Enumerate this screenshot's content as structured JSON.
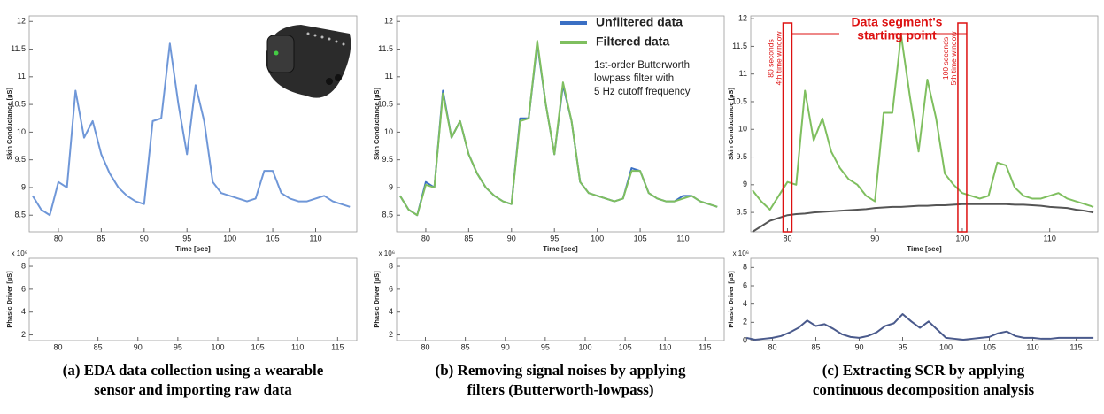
{
  "chart_data": [
    {
      "type": "line",
      "xlabel": "Time [sec]",
      "ylabel": "Skin Conductance [µS]",
      "x": [
        77,
        78,
        79,
        80,
        81,
        82,
        83,
        84,
        85,
        86,
        87,
        88,
        89,
        90,
        91,
        92,
        93,
        94,
        95,
        96,
        97,
        98,
        99,
        100,
        101,
        102,
        103,
        104,
        105,
        106,
        107,
        108,
        109,
        110,
        111,
        112,
        113,
        114
      ],
      "series": [
        {
          "color": "#6f97d8",
          "values": [
            8.85,
            8.6,
            8.5,
            9.1,
            9.0,
            10.75,
            9.9,
            10.2,
            9.6,
            9.25,
            9.0,
            8.85,
            8.75,
            8.7,
            10.2,
            10.25,
            11.6,
            10.5,
            9.6,
            10.85,
            10.2,
            9.1,
            8.9,
            8.85,
            8.8,
            8.75,
            8.8,
            9.3,
            9.3,
            8.9,
            8.8,
            8.75,
            8.75,
            8.8,
            8.85,
            8.75,
            8.7,
            8.65
          ]
        }
      ],
      "xlim": [
        76.6,
        114.8
      ],
      "ylim": [
        8.2,
        12.1
      ],
      "xticks": [
        80,
        85,
        90,
        95,
        100,
        105,
        110
      ],
      "yticks": [
        8.5,
        9,
        9.5,
        10,
        10.5,
        11,
        11.5,
        12
      ]
    },
    {
      "type": "line",
      "ylabel": "Phasic Driver [µS]",
      "y_multiplier": "x 10⁶",
      "x": [],
      "series": [],
      "xlim": [
        76.4,
        117.4
      ],
      "ylim": [
        1.5,
        8.7
      ],
      "xticks": [
        80,
        85,
        90,
        95,
        100,
        105,
        110,
        115
      ],
      "yticks": [
        2,
        4,
        6,
        8
      ]
    },
    {
      "type": "line",
      "xlabel": "Time [sec]",
      "ylabel": "Skin Conductance [µS]",
      "legend": "upper right",
      "note": [
        "1st-order Butterworth",
        "lowpass filter with",
        "5 Hz cutoff frequency"
      ],
      "x": [
        77,
        78,
        79,
        80,
        81,
        82,
        83,
        84,
        85,
        86,
        87,
        88,
        89,
        90,
        91,
        92,
        93,
        94,
        95,
        96,
        97,
        98,
        99,
        100,
        101,
        102,
        103,
        104,
        105,
        106,
        107,
        108,
        109,
        110,
        111,
        112,
        113,
        114
      ],
      "series": [
        {
          "name": "Unfiltered data",
          "color": "#3a6fc4",
          "values": [
            8.85,
            8.6,
            8.5,
            9.1,
            9.0,
            10.75,
            9.9,
            10.2,
            9.6,
            9.25,
            9.0,
            8.85,
            8.75,
            8.7,
            10.25,
            10.25,
            11.6,
            10.5,
            9.6,
            10.85,
            10.2,
            9.1,
            8.9,
            8.85,
            8.8,
            8.75,
            8.8,
            9.35,
            9.3,
            8.9,
            8.8,
            8.75,
            8.75,
            8.85,
            8.85,
            8.75,
            8.7,
            8.65
          ]
        },
        {
          "name": "Filtered data",
          "color": "#7fbf5f",
          "values": [
            8.85,
            8.6,
            8.5,
            9.05,
            9.0,
            10.7,
            9.9,
            10.2,
            9.6,
            9.25,
            9.0,
            8.85,
            8.75,
            8.7,
            10.2,
            10.25,
            11.65,
            10.5,
            9.6,
            10.9,
            10.2,
            9.1,
            8.9,
            8.85,
            8.8,
            8.75,
            8.8,
            9.3,
            9.3,
            8.9,
            8.8,
            8.75,
            8.75,
            8.8,
            8.85,
            8.75,
            8.7,
            8.65
          ]
        }
      ],
      "xlim": [
        76.6,
        114.8
      ],
      "ylim": [
        8.2,
        12.1
      ],
      "xticks": [
        80,
        85,
        90,
        95,
        100,
        105,
        110
      ],
      "yticks": [
        8.5,
        9,
        9.5,
        10,
        10.5,
        11,
        11.5,
        12
      ]
    },
    {
      "type": "line",
      "ylabel": "Phasic Driver [µS]",
      "y_multiplier": "x 10⁶",
      "x": [],
      "series": [],
      "xlim": [
        76.4,
        117.4
      ],
      "ylim": [
        1.5,
        8.7
      ],
      "xticks": [
        80,
        85,
        90,
        95,
        100,
        105,
        110,
        115
      ],
      "yticks": [
        2,
        4,
        6,
        8
      ]
    },
    {
      "type": "line",
      "xlabel": "Time [sec]",
      "ylabel": "Skin Conductance [µS]",
      "annotation": [
        "Data segment's",
        "starting point"
      ],
      "windows": [
        {
          "x": 80,
          "label": [
            "80 seconds",
            "4th time window"
          ]
        },
        {
          "x": 100,
          "label": [
            "100 seconds",
            "5th time window"
          ]
        }
      ],
      "x": [
        76,
        77,
        78,
        79,
        80,
        81,
        82,
        83,
        84,
        85,
        86,
        87,
        88,
        89,
        90,
        91,
        92,
        93,
        94,
        95,
        96,
        97,
        98,
        99,
        100,
        101,
        102,
        103,
        104,
        105,
        106,
        107,
        108,
        109,
        110,
        111,
        112,
        113,
        114,
        115
      ],
      "series": [
        {
          "color": "#7fbf5f",
          "values": [
            8.9,
            8.7,
            8.55,
            8.8,
            9.05,
            9.0,
            10.7,
            9.8,
            10.2,
            9.6,
            9.3,
            9.1,
            9.0,
            8.8,
            8.7,
            10.3,
            10.3,
            11.7,
            10.6,
            9.6,
            10.9,
            10.2,
            9.2,
            9.0,
            8.85,
            8.8,
            8.75,
            8.8,
            9.4,
            9.35,
            8.95,
            8.8,
            8.75,
            8.75,
            8.8,
            8.85,
            8.75,
            8.7,
            8.65,
            8.6
          ]
        },
        {
          "color": "#555555",
          "values": [
            8.15,
            8.25,
            8.35,
            8.4,
            8.45,
            8.47,
            8.48,
            8.5,
            8.51,
            8.52,
            8.53,
            8.54,
            8.55,
            8.56,
            8.58,
            8.59,
            8.6,
            8.6,
            8.61,
            8.62,
            8.62,
            8.63,
            8.63,
            8.64,
            8.65,
            8.65,
            8.65,
            8.65,
            8.65,
            8.65,
            8.64,
            8.64,
            8.63,
            8.62,
            8.6,
            8.59,
            8.58,
            8.55,
            8.53,
            8.5
          ]
        }
      ],
      "xlim": [
        75.8,
        115.5
      ],
      "ylim": [
        8.15,
        12.05
      ],
      "xticks": [
        80,
        90,
        100,
        110
      ],
      "yticks": [
        8.5,
        9,
        9.5,
        10,
        10.5,
        11,
        11.5,
        12
      ]
    },
    {
      "type": "line",
      "ylabel": "Phasic Driver [µS]",
      "y_multiplier": "x 10⁶",
      "x": [
        77,
        78,
        79,
        80,
        81,
        82,
        83,
        84,
        85,
        86,
        87,
        88,
        89,
        90,
        91,
        92,
        93,
        94,
        95,
        96,
        97,
        98,
        99,
        100,
        101,
        102,
        103,
        104,
        105,
        106,
        107,
        108,
        109,
        110,
        111,
        112,
        113,
        114,
        115,
        116,
        117
      ],
      "series": [
        {
          "color": "#4a5a8c",
          "values": [
            0.3,
            0.1,
            0.2,
            0.3,
            0.5,
            0.9,
            1.4,
            2.2,
            1.6,
            1.8,
            1.3,
            0.7,
            0.4,
            0.3,
            0.5,
            0.9,
            1.6,
            1.9,
            2.9,
            2.1,
            1.4,
            2.1,
            1.2,
            0.3,
            0.2,
            0.1,
            0.2,
            0.3,
            0.4,
            0.8,
            1.0,
            0.5,
            0.3,
            0.3,
            0.2,
            0.2,
            0.3,
            0.3,
            0.3,
            0.3,
            0.3
          ]
        }
      ],
      "xlim": [
        77.5,
        117.5
      ],
      "ylim": [
        0,
        9
      ],
      "xticks": [
        80,
        85,
        90,
        95,
        100,
        105,
        110,
        115
      ],
      "yticks": [
        0,
        2,
        4,
        6,
        8
      ]
    }
  ],
  "captions": [
    [
      "(a) EDA data collection using a wearable",
      "sensor and importing raw data"
    ],
    [
      "(b) Removing signal noises by applying",
      "filters (Butterworth-lowpass)"
    ],
    [
      "(c) Extracting SCR by applying",
      "continuous decomposition analysis"
    ]
  ]
}
